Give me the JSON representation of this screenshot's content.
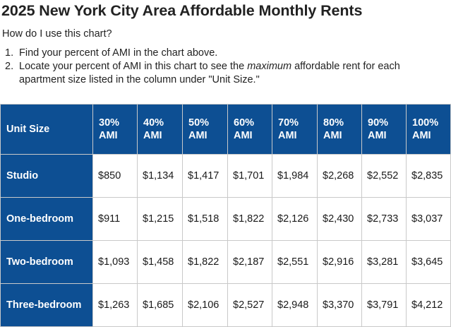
{
  "title": "2025 New York City Area Affordable Monthly Rents",
  "subtitle": "How do I use this chart?",
  "steps": [
    {
      "num": "1.",
      "text": "Find your percent of AMI in the chart above."
    },
    {
      "num": "2.",
      "text_before": "Locate your percent of AMI in this chart to see the ",
      "text_emphasis": "maximum",
      "text_after": " affordable rent for each apartment size listed in the column under \"Unit Size.\""
    }
  ],
  "table": {
    "header": {
      "unit_size": "Unit Size",
      "ami_columns": [
        {
          "pct": "30%",
          "unit": "AMI"
        },
        {
          "pct": "40%",
          "unit": "AMI"
        },
        {
          "pct": "50%",
          "unit": "AMI"
        },
        {
          "pct": "60%",
          "unit": "AMI"
        },
        {
          "pct": "70%",
          "unit": "AMI"
        },
        {
          "pct": "80%",
          "unit": "AMI"
        },
        {
          "pct": "90%",
          "unit": "AMI"
        },
        {
          "pct": "100%",
          "unit": "AMI"
        }
      ]
    },
    "rows": [
      {
        "unit": "Studio",
        "values": [
          "$850",
          "$1,134",
          "$1,417",
          "$1,701",
          "$1,984",
          "$2,268",
          "$2,552",
          "$2,835"
        ]
      },
      {
        "unit": "One-bedroom",
        "values": [
          "$911",
          "$1,215",
          "$1,518",
          "$1,822",
          "$2,126",
          "$2,430",
          "$2,733",
          "$3,037"
        ]
      },
      {
        "unit": "Two-bedroom",
        "values": [
          "$1,093",
          "$1,458",
          "$1,822",
          "$2,187",
          "$2,551",
          "$2,916",
          "$3,281",
          "$3,645"
        ]
      },
      {
        "unit": "Three-bedroom",
        "values": [
          "$1,263",
          "$1,685",
          "$2,106",
          "$2,527",
          "$2,948",
          "$3,370",
          "$3,791",
          "$4,212"
        ]
      }
    ]
  },
  "colors": {
    "header_blue": "#0d4f93",
    "grid": "#c9c9c9",
    "text": "#1a1a1a"
  }
}
